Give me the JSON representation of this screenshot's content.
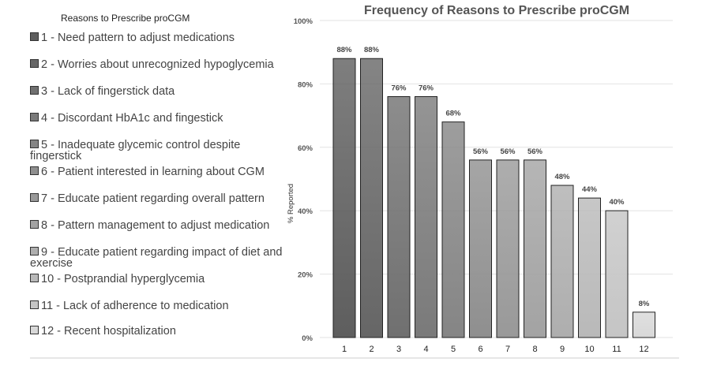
{
  "legend": {
    "title": "Reasons to Prescribe proCGM",
    "items": [
      {
        "label": "1 - Need pattern to adjust medications",
        "color": "#5e5e5e"
      },
      {
        "label": "2 - Worries about unrecognized hypoglycemia",
        "color": "#666666"
      },
      {
        "label": "3 - Lack of fingerstick data",
        "color": "#707070"
      },
      {
        "label": "4 - Discordant HbA1c and fingestick",
        "color": "#7a7a7a"
      },
      {
        "label": "5 - Inadequate glycemic control despite fingerstick",
        "color": "#858585"
      },
      {
        "label": "6 - Patient interested in learning about CGM",
        "color": "#8f8f8f"
      },
      {
        "label": "7 - Educate patient regarding overall pattern",
        "color": "#999999"
      },
      {
        "label": "8 - Pattern management to adjust medication",
        "color": "#a3a3a3"
      },
      {
        "label": "9 - Educate patient regarding impact of diet and exercise",
        "color": "#aeaeae"
      },
      {
        "label": "10 - Postprandial hyperglycemia",
        "color": "#b9b9b9"
      },
      {
        "label": "11 - Lack of adherence to medication",
        "color": "#c5c5c5"
      },
      {
        "label": "12 - Recent hospitalization",
        "color": "#d8d8d8"
      }
    ]
  },
  "chart_data": {
    "type": "bar",
    "title": "Frequency of Reasons to Prescribe proCGM",
    "xlabel": "",
    "ylabel": "% Reported",
    "categories": [
      "1",
      "2",
      "3",
      "4",
      "5",
      "6",
      "7",
      "8",
      "9",
      "10",
      "11",
      "12"
    ],
    "values": [
      88,
      88,
      76,
      76,
      68,
      56,
      56,
      56,
      48,
      44,
      40,
      8
    ],
    "data_labels": [
      "88%",
      "88%",
      "76%",
      "76%",
      "68%",
      "56%",
      "56%",
      "56%",
      "48%",
      "44%",
      "40%",
      "8%"
    ],
    "ylim": [
      0,
      100
    ],
    "yticks": [
      "0%",
      "20%",
      "40%",
      "60%",
      "80%",
      "100%"
    ],
    "grid": true,
    "legend_placement": "left"
  }
}
